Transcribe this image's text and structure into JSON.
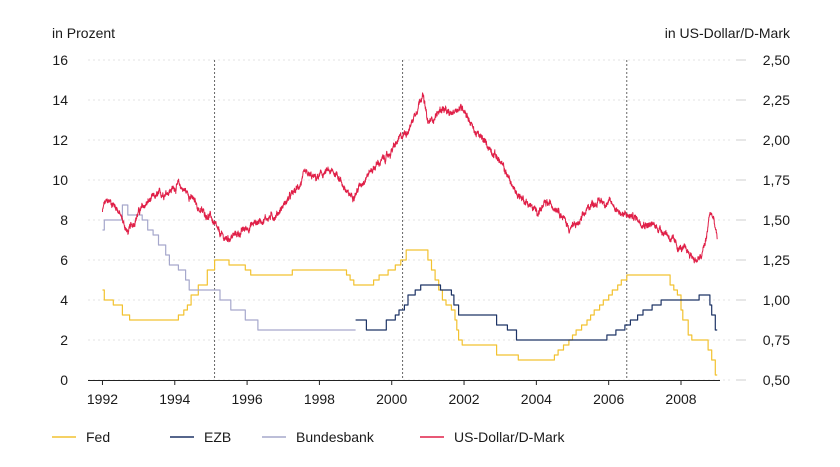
{
  "chart_data": {
    "type": "line",
    "title": "",
    "left_axis": {
      "unit_label": "in Prozent",
      "range": [
        0,
        16
      ],
      "ticks": [
        "0",
        "2",
        "4",
        "6",
        "8",
        "10",
        "12",
        "14",
        "16"
      ]
    },
    "right_axis": {
      "unit_label": "in US-Dollar/D-Mark",
      "range": [
        0.5,
        2.5
      ],
      "ticks": [
        "0,50",
        "0,75",
        "1,00",
        "1,25",
        "1,50",
        "1,75",
        "2,00",
        "2,25",
        "2,50"
      ]
    },
    "x_axis": {
      "range": [
        1991.6,
        2009.3
      ],
      "ticks": [
        "1992",
        "1994",
        "1996",
        "1998",
        "2000",
        "2002",
        "2004",
        "2006",
        "2008"
      ]
    },
    "vertical_markers": [
      1995.1,
      2000.3,
      2006.5
    ],
    "grid": true,
    "legend_position": "bottom",
    "series": [
      {
        "name": "Fed",
        "color": "#f2c230",
        "axis": "left",
        "step": true,
        "points": [
          [
            1992.0,
            4.5
          ],
          [
            1992.05,
            4.0
          ],
          [
            1992.3,
            3.75
          ],
          [
            1992.55,
            3.25
          ],
          [
            1992.75,
            3.0
          ],
          [
            1994.1,
            3.25
          ],
          [
            1994.25,
            3.5
          ],
          [
            1994.35,
            3.75
          ],
          [
            1994.45,
            4.25
          ],
          [
            1994.65,
            4.75
          ],
          [
            1994.9,
            5.5
          ],
          [
            1995.1,
            6.0
          ],
          [
            1995.5,
            5.75
          ],
          [
            1995.95,
            5.5
          ],
          [
            1996.1,
            5.25
          ],
          [
            1997.25,
            5.5
          ],
          [
            1998.75,
            5.25
          ],
          [
            1998.85,
            5.0
          ],
          [
            1998.95,
            4.75
          ],
          [
            1999.5,
            5.0
          ],
          [
            1999.65,
            5.25
          ],
          [
            1999.9,
            5.5
          ],
          [
            2000.1,
            5.75
          ],
          [
            2000.25,
            6.0
          ],
          [
            2000.4,
            6.5
          ],
          [
            2001.0,
            6.0
          ],
          [
            2001.1,
            5.5
          ],
          [
            2001.2,
            5.0
          ],
          [
            2001.3,
            4.5
          ],
          [
            2001.4,
            4.0
          ],
          [
            2001.5,
            3.75
          ],
          [
            2001.65,
            3.5
          ],
          [
            2001.75,
            3.0
          ],
          [
            2001.8,
            2.5
          ],
          [
            2001.85,
            2.0
          ],
          [
            2001.95,
            1.75
          ],
          [
            2002.9,
            1.25
          ],
          [
            2003.5,
            1.0
          ],
          [
            2004.5,
            1.25
          ],
          [
            2004.6,
            1.5
          ],
          [
            2004.75,
            1.75
          ],
          [
            2004.9,
            2.0
          ],
          [
            2005.0,
            2.25
          ],
          [
            2005.1,
            2.5
          ],
          [
            2005.25,
            2.75
          ],
          [
            2005.4,
            3.0
          ],
          [
            2005.5,
            3.25
          ],
          [
            2005.6,
            3.5
          ],
          [
            2005.75,
            3.75
          ],
          [
            2005.85,
            4.0
          ],
          [
            2006.0,
            4.25
          ],
          [
            2006.1,
            4.5
          ],
          [
            2006.25,
            4.75
          ],
          [
            2006.35,
            5.0
          ],
          [
            2006.5,
            5.25
          ],
          [
            2007.7,
            4.75
          ],
          [
            2007.8,
            4.5
          ],
          [
            2007.9,
            4.25
          ],
          [
            2008.0,
            3.5
          ],
          [
            2008.05,
            3.0
          ],
          [
            2008.2,
            2.25
          ],
          [
            2008.3,
            2.0
          ],
          [
            2008.75,
            1.5
          ],
          [
            2008.85,
            1.0
          ],
          [
            2008.95,
            0.25
          ]
        ]
      },
      {
        "name": "EZB",
        "color": "#1e3466",
        "axis": "left",
        "step": true,
        "points": [
          [
            1999.0,
            3.0
          ],
          [
            1999.3,
            2.5
          ],
          [
            1999.85,
            3.0
          ],
          [
            2000.1,
            3.25
          ],
          [
            2000.2,
            3.5
          ],
          [
            2000.35,
            3.75
          ],
          [
            2000.45,
            4.25
          ],
          [
            2000.65,
            4.5
          ],
          [
            2000.8,
            4.75
          ],
          [
            2001.35,
            4.5
          ],
          [
            2001.65,
            4.25
          ],
          [
            2001.72,
            3.75
          ],
          [
            2001.85,
            3.25
          ],
          [
            2002.9,
            2.75
          ],
          [
            2003.2,
            2.5
          ],
          [
            2003.45,
            2.0
          ],
          [
            2005.95,
            2.25
          ],
          [
            2006.2,
            2.5
          ],
          [
            2006.45,
            2.75
          ],
          [
            2006.6,
            3.0
          ],
          [
            2006.8,
            3.25
          ],
          [
            2006.95,
            3.5
          ],
          [
            2007.2,
            3.75
          ],
          [
            2007.45,
            4.0
          ],
          [
            2008.5,
            4.25
          ],
          [
            2008.8,
            3.75
          ],
          [
            2008.85,
            3.25
          ],
          [
            2008.95,
            2.5
          ]
        ]
      },
      {
        "name": "Bundesbank",
        "color": "#a6a8cc",
        "axis": "left",
        "step": true,
        "points": [
          [
            1992.0,
            7.5
          ],
          [
            1992.05,
            8.0
          ],
          [
            1992.55,
            8.75
          ],
          [
            1992.7,
            8.25
          ],
          [
            1993.1,
            8.0
          ],
          [
            1993.25,
            7.5
          ],
          [
            1993.4,
            7.25
          ],
          [
            1993.55,
            6.75
          ],
          [
            1993.75,
            6.25
          ],
          [
            1993.85,
            5.75
          ],
          [
            1994.1,
            5.5
          ],
          [
            1994.3,
            5.0
          ],
          [
            1994.4,
            4.5
          ],
          [
            1995.25,
            4.0
          ],
          [
            1995.55,
            3.5
          ],
          [
            1995.95,
            3.0
          ],
          [
            1996.3,
            2.5
          ],
          [
            1998.95,
            2.5
          ]
        ]
      },
      {
        "name": "US-Dollar/D-Mark",
        "color": "#e02048",
        "axis": "right",
        "step": false,
        "noise": 0.022,
        "points": [
          [
            1992.0,
            1.55
          ],
          [
            1992.05,
            1.6
          ],
          [
            1992.2,
            1.62
          ],
          [
            1992.4,
            1.58
          ],
          [
            1992.6,
            1.47
          ],
          [
            1992.7,
            1.42
          ],
          [
            1992.85,
            1.48
          ],
          [
            1993.0,
            1.55
          ],
          [
            1993.3,
            1.62
          ],
          [
            1993.6,
            1.66
          ],
          [
            1993.9,
            1.69
          ],
          [
            1994.1,
            1.72
          ],
          [
            1994.4,
            1.66
          ],
          [
            1994.7,
            1.56
          ],
          [
            1995.0,
            1.52
          ],
          [
            1995.2,
            1.42
          ],
          [
            1995.4,
            1.38
          ],
          [
            1995.8,
            1.42
          ],
          [
            1996.2,
            1.48
          ],
          [
            1996.5,
            1.51
          ],
          [
            1996.8,
            1.53
          ],
          [
            1997.1,
            1.62
          ],
          [
            1997.4,
            1.7
          ],
          [
            1997.6,
            1.78
          ],
          [
            1997.9,
            1.76
          ],
          [
            1998.2,
            1.8
          ],
          [
            1998.5,
            1.79
          ],
          [
            1998.8,
            1.65
          ],
          [
            1999.0,
            1.67
          ],
          [
            1999.3,
            1.78
          ],
          [
            1999.6,
            1.85
          ],
          [
            1999.9,
            1.9
          ],
          [
            2000.2,
            2.0
          ],
          [
            2000.5,
            2.08
          ],
          [
            2000.7,
            2.2
          ],
          [
            2000.85,
            2.3
          ],
          [
            2001.0,
            2.1
          ],
          [
            2001.2,
            2.15
          ],
          [
            2001.4,
            2.2
          ],
          [
            2001.6,
            2.15
          ],
          [
            2001.8,
            2.2
          ],
          [
            2002.0,
            2.2
          ],
          [
            2002.3,
            2.05
          ],
          [
            2002.6,
            1.98
          ],
          [
            2002.9,
            1.9
          ],
          [
            2003.2,
            1.78
          ],
          [
            2003.4,
            1.68
          ],
          [
            2003.7,
            1.62
          ],
          [
            2004.0,
            1.55
          ],
          [
            2004.3,
            1.6
          ],
          [
            2004.6,
            1.58
          ],
          [
            2004.9,
            1.45
          ],
          [
            2005.2,
            1.48
          ],
          [
            2005.5,
            1.6
          ],
          [
            2005.8,
            1.62
          ],
          [
            2006.1,
            1.6
          ],
          [
            2006.4,
            1.53
          ],
          [
            2006.7,
            1.52
          ],
          [
            2007.0,
            1.48
          ],
          [
            2007.3,
            1.46
          ],
          [
            2007.6,
            1.42
          ],
          [
            2007.9,
            1.33
          ],
          [
            2008.2,
            1.3
          ],
          [
            2008.4,
            1.25
          ],
          [
            2008.55,
            1.26
          ],
          [
            2008.7,
            1.38
          ],
          [
            2008.8,
            1.55
          ],
          [
            2008.88,
            1.52
          ],
          [
            2008.95,
            1.45
          ],
          [
            2009.0,
            1.38
          ]
        ]
      }
    ]
  }
}
